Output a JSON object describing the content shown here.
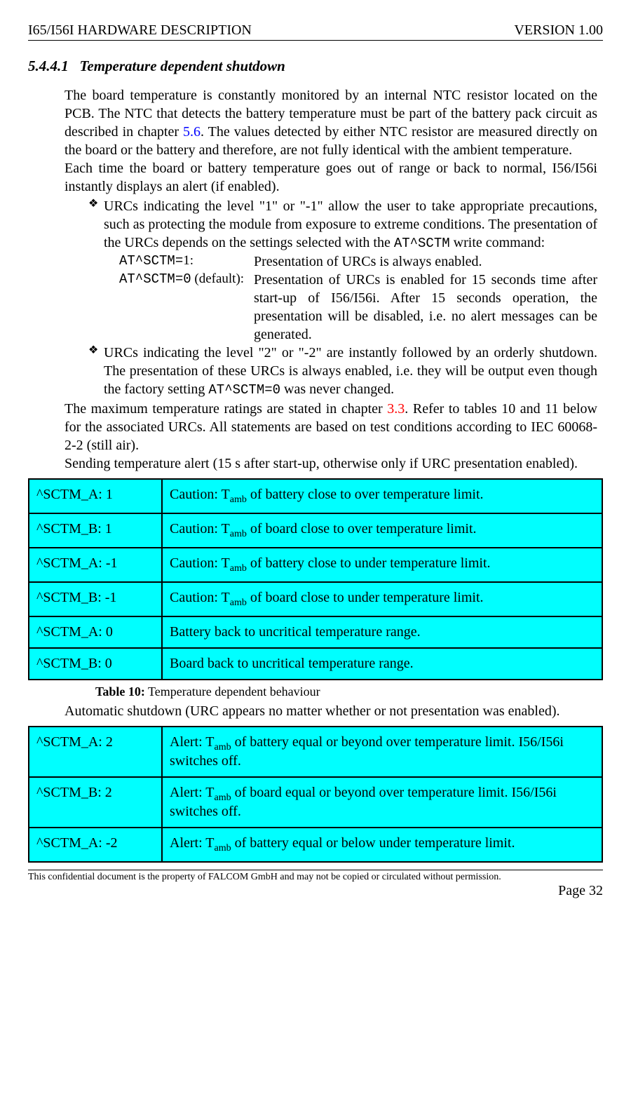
{
  "header": {
    "left": "I65/I56I HARDWARE DESCRIPTION",
    "right": "VERSION 1.00"
  },
  "section": {
    "number": "5.4.4.1",
    "title": "Temperature dependent shutdown"
  },
  "para1_a": "The board temperature is constantly monitored by an internal NTC resistor located on the PCB. The NTC that detects the battery temperature must be part of the battery pack circuit as described in chapter ",
  "para1_ref": "5.6",
  "para1_b": ". The values detected by either NTC resistor are measured directly on the board or the battery and therefore, are not fully identical with the ambient temperature.",
  "para2": "Each time the board or battery temperature goes out of range or back to normal, I56/I56i instantly displays an alert (if enabled).",
  "bullet1_a": "URCs indicating the level \"1\" or \"-1\" allow the user to take appropriate precautions, such as protecting the module from exposure to extreme conditions. The presentation of the URCs depends on the settings selected with the ",
  "bullet1_cmd": "AT^SCTM",
  "bullet1_b": " write command:",
  "at1_label": "AT^SCTM=",
  "at1_suffix": "1:",
  "at1_desc": "Presentation of URCs is always enabled.",
  "at2_label": "AT^SCTM=0",
  "at2_suffix": " (default):",
  "at2_desc": "Presentation of URCs is enabled for 15 seconds time after start-up of I56/I56i. After 15 seconds operation, the presentation will be disabled, i.e. no alert messages can be generated.",
  "bullet2_a": "URCs indicating the level \"2\" or \"-2\" are instantly followed by an orderly shutdown. The presentation of these URCs is always enabled, i.e. they will be output even though the factory setting ",
  "bullet2_cmd": "AT^SCTM=0",
  "bullet2_b": " was never changed.",
  "para3_a": "The maximum temperature ratings are stated in chapter ",
  "para3_ref": "3.3",
  "para3_b": ". Refer to tables 10 and 11 below for the associated URCs. All statements are based on test conditions according to IEC 60068-2-2 (still air).",
  "para4": "Sending temperature alert (15 s after start-up, otherwise only if URC presentation enabled).",
  "table10": {
    "rows": [
      {
        "code": "^SCTM_A: 1",
        "pre": "Caution: T",
        "sub": "amb",
        "post": " of battery close to over temperature limit."
      },
      {
        "code": "^SCTM_B: 1",
        "pre": "Caution: T",
        "sub": "amb",
        "post": " of board close to over temperature limit."
      },
      {
        "code": "^SCTM_A: -1",
        "pre": "Caution: T",
        "sub": "amb",
        "post": " of battery close to under temperature limit."
      },
      {
        "code": "^SCTM_B: -1",
        "pre": "Caution: T",
        "sub": "amb",
        "post": " of board close to under temperature limit."
      },
      {
        "code": "^SCTM_A: 0",
        "pre": "Battery back to uncritical temperature range.",
        "sub": "",
        "post": ""
      },
      {
        "code": "^SCTM_B: 0",
        "pre": "Board back to uncritical temperature range.",
        "sub": "",
        "post": ""
      }
    ],
    "caption_label": "Table 10:",
    "caption_text": " Temperature dependent behaviour"
  },
  "para5": "Automatic shutdown (URC appears no matter whether or not presentation was enabled).",
  "table11": {
    "rows": [
      {
        "code": "^SCTM_A: 2",
        "pre": "Alert: T",
        "sub": "amb",
        "post": " of battery equal or beyond over temperature limit. I56/I56i switches off."
      },
      {
        "code": "^SCTM_B: 2",
        "pre": "Alert: T",
        "sub": "amb",
        "post": " of board equal or beyond over temperature limit. I56/I56i switches off."
      },
      {
        "code": "^SCTM_A: -2",
        "pre": "Alert: T",
        "sub": "amb",
        "post": " of battery equal or below under temperature limit."
      }
    ]
  },
  "footer": {
    "notice": "This confidential document is the property of FALCOM GmbH and may not be copied or circulated without permission.",
    "page": "Page 32"
  },
  "colors": {
    "table_bg": "#00ffff",
    "ref_blue": "#0000ff",
    "ref_red": "#ff0000"
  }
}
